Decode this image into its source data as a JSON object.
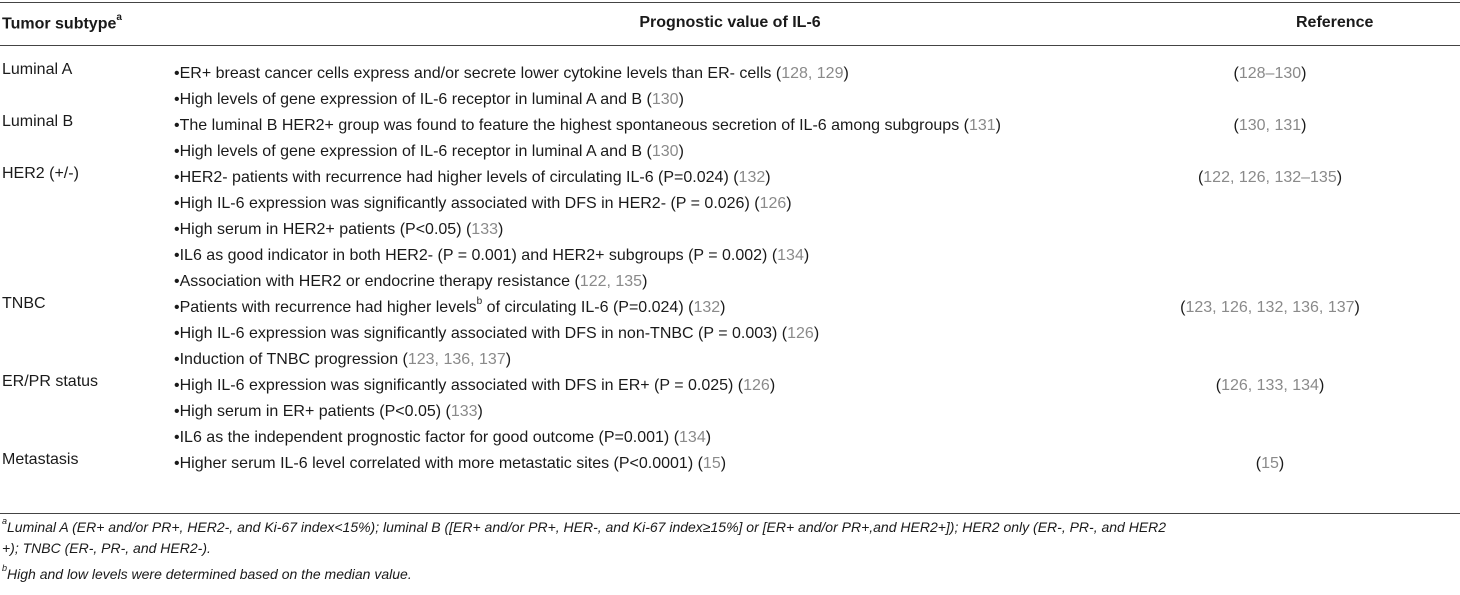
{
  "header": {
    "col1": "Tumor subtype",
    "col1_sup": "a",
    "col2": "Prognostic value of IL-6",
    "col3": "Reference"
  },
  "rows": [
    {
      "subtype": "Luminal A",
      "bullets": [
        {
          "text": "•ER+ breast cancer cells express and/or secrete lower cytokine levels than ER- cells (",
          "refs": "128, 129",
          "tail": ")"
        },
        {
          "text": "•High levels of gene expression of IL-6 receptor in luminal A and B (",
          "refs": "130",
          "tail": ")"
        }
      ],
      "reference": "128–130"
    },
    {
      "subtype": "Luminal B",
      "bullets": [
        {
          "text": "•The luminal B HER2+ group was found to feature the highest spontaneous secretion of IL-6 among subgroups (",
          "refs": "131",
          "tail": ")"
        },
        {
          "text": "•High levels of gene expression of IL-6 receptor in luminal A and B (",
          "refs": "130",
          "tail": ")"
        }
      ],
      "reference": "130, 131"
    },
    {
      "subtype": "HER2 (+/-)",
      "bullets": [
        {
          "text": "•HER2- patients with recurrence had higher levels of circulating IL-6 (P=0.024) (",
          "refs": "132",
          "tail": ")"
        },
        {
          "text": "•High IL-6 expression was significantly associated with DFS in HER2- (P = 0.026) (",
          "refs": "126",
          "tail": ")"
        },
        {
          "text": "•High serum in HER2+ patients (P<0.05) (",
          "refs": "133",
          "tail": ")"
        },
        {
          "text": "•IL6 as good indicator in both HER2- (P = 0.001) and HER2+ subgroups (P = 0.002) (",
          "refs": "134",
          "tail": ")"
        },
        {
          "text": "•Association with HER2 or endocrine therapy resistance (",
          "refs": "122, 135",
          "tail": ")"
        }
      ],
      "reference": "122, 126, 132–135"
    },
    {
      "subtype": "TNBC",
      "bullets": [
        {
          "text": "•Patients with recurrence had higher levels",
          "sup": "b",
          "text2": " of circulating IL-6 (P=0.024) (",
          "refs": "132",
          "tail": ")"
        },
        {
          "text": "•High IL-6 expression was significantly associated with DFS in non-TNBC (P = 0.003) (",
          "refs": "126",
          "tail": ")"
        },
        {
          "text": "•Induction of TNBC progression (",
          "refs": "123, 136, 137",
          "tail": ")"
        }
      ],
      "reference": "123, 126, 132, 136, 137"
    },
    {
      "subtype": "ER/PR status",
      "bullets": [
        {
          "text": "•High IL-6 expression was significantly associated with DFS in ER+ (P = 0.025) (",
          "refs": "126",
          "tail": ")"
        },
        {
          "text": "•High serum in ER+ patients (P<0.05) (",
          "refs": "133",
          "tail": ")"
        },
        {
          "text": "•IL6 as the independent prognostic factor for good outcome (P=0.001) (",
          "refs": "134",
          "tail": ")"
        }
      ],
      "reference": "126, 133, 134"
    },
    {
      "subtype": "Metastasis",
      "bullets": [
        {
          "text": "•Higher serum IL-6 level correlated with more metastatic sites (P<0.0001) (",
          "refs": "15",
          "tail": ")"
        }
      ],
      "reference": "15"
    }
  ],
  "footnotes": {
    "a_mark": "a",
    "a_line1": "Luminal A (ER+ and/or PR+, HER2-, and Ki-67 index<15%); luminal B ([ER+ and/or PR+, HER-, and Ki-67 index≥15%] or [ER+ and/or PR+,and HER2+]); HER2 only (ER-, PR-, and HER2",
    "a_line2": "+); TNBC (ER-, PR-, and HER2-).",
    "b_mark": "b",
    "b_line": "High and low levels were determined based on the median value."
  }
}
